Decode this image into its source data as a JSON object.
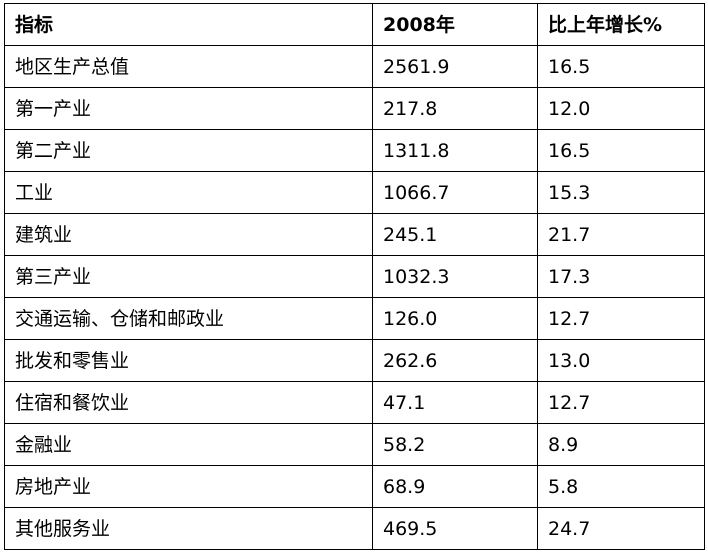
{
  "table": {
    "headers": [
      "指标",
      "2008年",
      "比上年增长%"
    ],
    "rows": [
      [
        "地区生产总值",
        "2561.9",
        "16.5"
      ],
      [
        "第一产业",
        "217.8",
        "12.0"
      ],
      [
        "第二产业",
        "1311.8",
        "16.5"
      ],
      [
        "工业",
        "1066.7",
        "15.3"
      ],
      [
        "建筑业",
        "245.1",
        "21.7"
      ],
      [
        "第三产业",
        "1032.3",
        "17.3"
      ],
      [
        "交通运输、仓储和邮政业",
        "126.0",
        "12.7"
      ],
      [
        "批发和零售业",
        "262.6",
        "13.0"
      ],
      [
        "住宿和餐饮业",
        "47.1",
        "12.7"
      ],
      [
        "金融业",
        "58.2",
        "8.9"
      ],
      [
        "房地产业",
        "68.9",
        "5.8"
      ],
      [
        "其他服务业",
        "469.5",
        "24.7"
      ]
    ]
  }
}
